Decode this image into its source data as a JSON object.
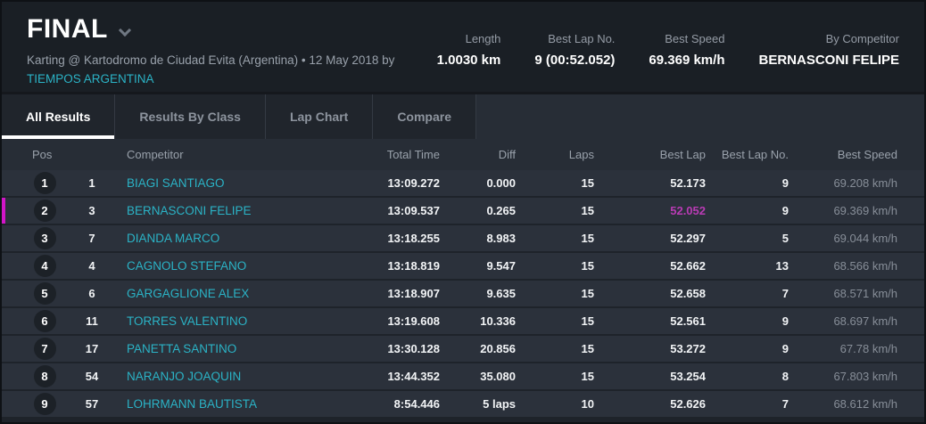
{
  "header": {
    "title": "FINAL",
    "subtitle_prefix": "Karting @ Kartodromo de Ciudad Evita (Argentina) • 12 May 2018 by ",
    "subtitle_link": "TIEMPOS ARGENTINA",
    "stats": [
      {
        "label": "Length",
        "value": "1.0030 km"
      },
      {
        "label": "Best Lap No.",
        "value": "9 (00:52.052)"
      },
      {
        "label": "Best Speed",
        "value": "69.369 km/h"
      },
      {
        "label": "By Competitor",
        "value": "BERNASCONI FELIPE"
      }
    ]
  },
  "icons": {
    "title_dropdown": "chevron-down"
  },
  "tabs": [
    {
      "label": "All Results",
      "active": true
    },
    {
      "label": "Results By Class",
      "active": false
    },
    {
      "label": "Lap Chart",
      "active": false
    },
    {
      "label": "Compare",
      "active": false
    }
  ],
  "table": {
    "columns": [
      "Pos",
      "Competitor",
      "Total Time",
      "Diff",
      "Laps",
      "Best Lap",
      "Best Lap No.",
      "Best Speed"
    ],
    "rows": [
      {
        "pos": "1",
        "no": "1",
        "competitor": "BIAGI SANTIAGO",
        "total_time": "13:09.272",
        "diff": "0.000",
        "laps": "15",
        "best_lap": "52.173",
        "best_lap_no": "9",
        "best_speed": "69.208 km/h",
        "highlight": false
      },
      {
        "pos": "2",
        "no": "3",
        "competitor": "BERNASCONI FELIPE",
        "total_time": "13:09.537",
        "diff": "0.265",
        "laps": "15",
        "best_lap": "52.052",
        "best_lap_no": "9",
        "best_speed": "69.369 km/h",
        "highlight": true
      },
      {
        "pos": "3",
        "no": "7",
        "competitor": "DIANDA MARCO",
        "total_time": "13:18.255",
        "diff": "8.983",
        "laps": "15",
        "best_lap": "52.297",
        "best_lap_no": "5",
        "best_speed": "69.044 km/h",
        "highlight": false
      },
      {
        "pos": "4",
        "no": "4",
        "competitor": "CAGNOLO STEFANO",
        "total_time": "13:18.819",
        "diff": "9.547",
        "laps": "15",
        "best_lap": "52.662",
        "best_lap_no": "13",
        "best_speed": "68.566 km/h",
        "highlight": false
      },
      {
        "pos": "5",
        "no": "6",
        "competitor": "GARGAGLIONE ALEX",
        "total_time": "13:18.907",
        "diff": "9.635",
        "laps": "15",
        "best_lap": "52.658",
        "best_lap_no": "7",
        "best_speed": "68.571 km/h",
        "highlight": false
      },
      {
        "pos": "6",
        "no": "11",
        "competitor": "TORRES VALENTINO",
        "total_time": "13:19.608",
        "diff": "10.336",
        "laps": "15",
        "best_lap": "52.561",
        "best_lap_no": "9",
        "best_speed": "68.697 km/h",
        "highlight": false
      },
      {
        "pos": "7",
        "no": "17",
        "competitor": "PANETTA SANTINO",
        "total_time": "13:30.128",
        "diff": "20.856",
        "laps": "15",
        "best_lap": "53.272",
        "best_lap_no": "9",
        "best_speed": "67.78 km/h",
        "highlight": false
      },
      {
        "pos": "8",
        "no": "54",
        "competitor": "NARANJO JOAQUIN",
        "total_time": "13:44.352",
        "diff": "35.080",
        "laps": "15",
        "best_lap": "53.254",
        "best_lap_no": "8",
        "best_speed": "67.803 km/h",
        "highlight": false
      },
      {
        "pos": "9",
        "no": "57",
        "competitor": "LOHRMANN BAUTISTA",
        "total_time": "8:54.446",
        "diff": "5 laps",
        "laps": "10",
        "best_lap": "52.626",
        "best_lap_no": "7",
        "best_speed": "68.612 km/h",
        "highlight": false
      }
    ]
  },
  "colors": {
    "accent_cyan": "#2bb3c6",
    "highlight_magenta_text": "#b93bb4",
    "highlight_magenta_bar": "#d215c8",
    "row_bg": "#2b313b",
    "header_bg": "#1a1f25"
  }
}
